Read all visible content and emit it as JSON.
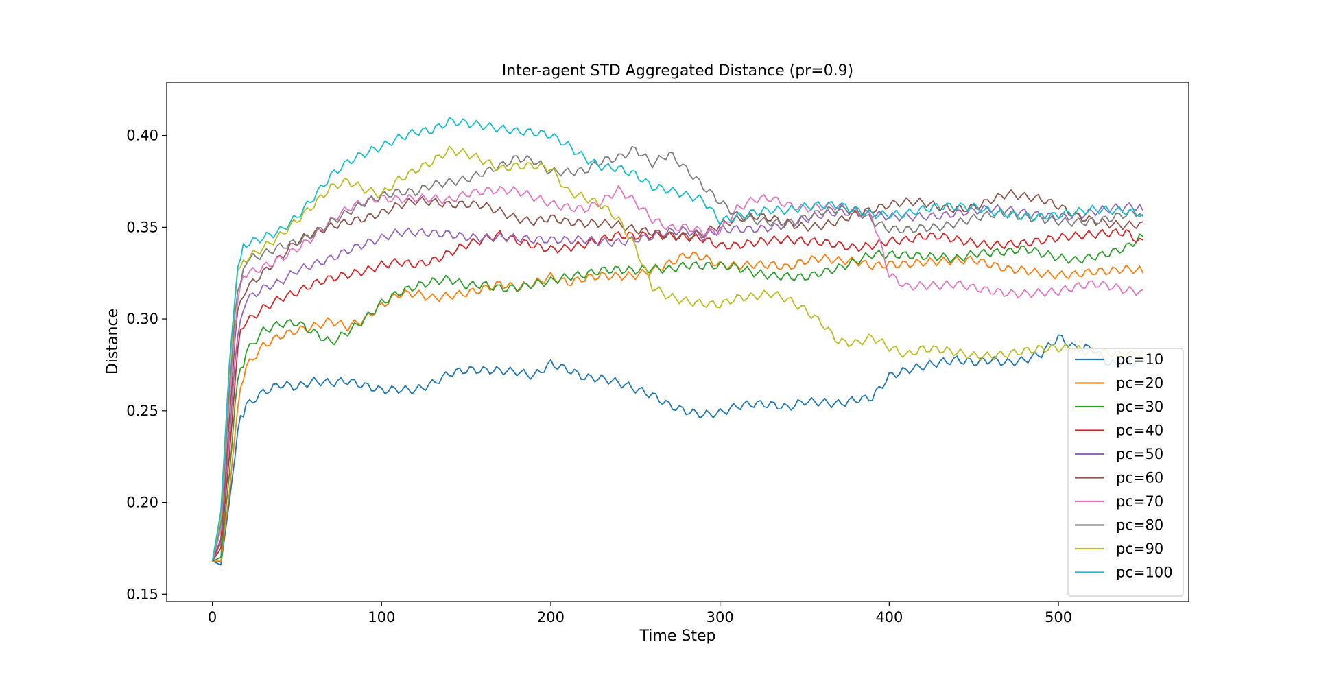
{
  "chart_data": {
    "type": "line",
    "title": "Inter-agent STD Aggregated Distance (pr=0.9)",
    "xlabel": "Time Step",
    "ylabel": "Distance",
    "xlim": [
      -27,
      577
    ],
    "ylim": [
      0.146,
      0.429
    ],
    "x_ticks": [
      0,
      100,
      200,
      300,
      400,
      500
    ],
    "x_tick_labels": [
      "0",
      "100",
      "200",
      "300",
      "400",
      "500"
    ],
    "y_ticks": [
      0.15,
      0.2,
      0.25,
      0.3,
      0.35,
      0.4
    ],
    "y_tick_labels": [
      "0.15",
      "0.20",
      "0.25",
      "0.30",
      "0.35",
      "0.40"
    ],
    "grid": false,
    "legend_position": "lower-right",
    "x": [
      0,
      5,
      10,
      15,
      20,
      30,
      40,
      50,
      60,
      70,
      80,
      90,
      100,
      110,
      120,
      130,
      140,
      150,
      160,
      170,
      180,
      190,
      200,
      210,
      220,
      230,
      240,
      250,
      260,
      270,
      280,
      290,
      300,
      310,
      320,
      330,
      340,
      350,
      360,
      370,
      380,
      390,
      400,
      410,
      420,
      430,
      440,
      450,
      460,
      470,
      480,
      490,
      500,
      510,
      520,
      530,
      540,
      550
    ],
    "series": [
      {
        "name": "pc=10",
        "color": "#1f77b4",
        "values": [
          0.168,
          0.166,
          0.2,
          0.238,
          0.255,
          0.262,
          0.265,
          0.262,
          0.264,
          0.263,
          0.265,
          0.264,
          0.263,
          0.264,
          0.263,
          0.265,
          0.269,
          0.27,
          0.27,
          0.271,
          0.272,
          0.271,
          0.278,
          0.274,
          0.268,
          0.266,
          0.263,
          0.26,
          0.258,
          0.254,
          0.252,
          0.25,
          0.25,
          0.252,
          0.252,
          0.251,
          0.25,
          0.255,
          0.256,
          0.256,
          0.258,
          0.258,
          0.268,
          0.27,
          0.272,
          0.275,
          0.278,
          0.278,
          0.28,
          0.278,
          0.278,
          0.28,
          0.288,
          0.282,
          0.283,
          0.276,
          0.278,
          0.279
        ]
      },
      {
        "name": "pc=20",
        "color": "#ff7f0e",
        "values": [
          0.168,
          0.168,
          0.205,
          0.255,
          0.272,
          0.285,
          0.292,
          0.296,
          0.298,
          0.3,
          0.295,
          0.298,
          0.305,
          0.312,
          0.314,
          0.313,
          0.315,
          0.316,
          0.317,
          0.318,
          0.315,
          0.317,
          0.322,
          0.32,
          0.324,
          0.326,
          0.325,
          0.324,
          0.325,
          0.328,
          0.333,
          0.333,
          0.33,
          0.331,
          0.332,
          0.331,
          0.328,
          0.33,
          0.331,
          0.33,
          0.331,
          0.33,
          0.332,
          0.332,
          0.332,
          0.331,
          0.33,
          0.33,
          0.328,
          0.327,
          0.328,
          0.327,
          0.326,
          0.325,
          0.325,
          0.324,
          0.325,
          0.325
        ]
      },
      {
        "name": "pc=30",
        "color": "#2ca02c",
        "values": [
          0.168,
          0.17,
          0.215,
          0.268,
          0.282,
          0.292,
          0.295,
          0.296,
          0.292,
          0.288,
          0.295,
          0.302,
          0.31,
          0.314,
          0.316,
          0.318,
          0.32,
          0.318,
          0.32,
          0.319,
          0.319,
          0.32,
          0.32,
          0.321,
          0.322,
          0.325,
          0.327,
          0.328,
          0.33,
          0.329,
          0.33,
          0.328,
          0.327,
          0.326,
          0.324,
          0.324,
          0.325,
          0.325,
          0.327,
          0.328,
          0.33,
          0.333,
          0.333,
          0.334,
          0.335,
          0.336,
          0.335,
          0.337,
          0.336,
          0.335,
          0.336,
          0.334,
          0.333,
          0.333,
          0.336,
          0.338,
          0.34,
          0.345
        ]
      },
      {
        "name": "pc=40",
        "color": "#d62728",
        "values": [
          0.168,
          0.175,
          0.225,
          0.285,
          0.3,
          0.308,
          0.313,
          0.315,
          0.318,
          0.32,
          0.322,
          0.325,
          0.33,
          0.333,
          0.332,
          0.333,
          0.336,
          0.339,
          0.341,
          0.344,
          0.342,
          0.341,
          0.34,
          0.341,
          0.342,
          0.343,
          0.344,
          0.343,
          0.344,
          0.345,
          0.346,
          0.346,
          0.342,
          0.341,
          0.341,
          0.341,
          0.341,
          0.341,
          0.342,
          0.342,
          0.341,
          0.342,
          0.343,
          0.342,
          0.343,
          0.343,
          0.342,
          0.342,
          0.342,
          0.343,
          0.343,
          0.343,
          0.343,
          0.343,
          0.344,
          0.346,
          0.348,
          0.343
        ]
      },
      {
        "name": "pc=50",
        "color": "#9467bd",
        "values": [
          0.168,
          0.178,
          0.235,
          0.295,
          0.308,
          0.315,
          0.32,
          0.328,
          0.332,
          0.335,
          0.338,
          0.34,
          0.342,
          0.345,
          0.346,
          0.347,
          0.348,
          0.347,
          0.346,
          0.345,
          0.343,
          0.341,
          0.341,
          0.342,
          0.344,
          0.344,
          0.344,
          0.345,
          0.345,
          0.346,
          0.346,
          0.343,
          0.348,
          0.35,
          0.351,
          0.352,
          0.353,
          0.354,
          0.355,
          0.356,
          0.356,
          0.357,
          0.357,
          0.358,
          0.358,
          0.357,
          0.357,
          0.357,
          0.358,
          0.358,
          0.358,
          0.358,
          0.358,
          0.358,
          0.359,
          0.359,
          0.359,
          0.359
        ]
      },
      {
        "name": "pc=60",
        "color": "#8c564b",
        "values": [
          0.168,
          0.18,
          0.245,
          0.305,
          0.318,
          0.325,
          0.332,
          0.34,
          0.345,
          0.35,
          0.354,
          0.357,
          0.36,
          0.363,
          0.364,
          0.362,
          0.36,
          0.361,
          0.362,
          0.36,
          0.357,
          0.355,
          0.356,
          0.352,
          0.35,
          0.35,
          0.35,
          0.349,
          0.349,
          0.348,
          0.347,
          0.347,
          0.35,
          0.352,
          0.354,
          0.354,
          0.353,
          0.352,
          0.353,
          0.355,
          0.357,
          0.358,
          0.36,
          0.362,
          0.363,
          0.362,
          0.362,
          0.363,
          0.366,
          0.368,
          0.365,
          0.363,
          0.36,
          0.356,
          0.355,
          0.354,
          0.353,
          0.353
        ]
      },
      {
        "name": "pc=70",
        "color": "#e377c2",
        "values": [
          0.168,
          0.185,
          0.255,
          0.312,
          0.325,
          0.33,
          0.335,
          0.34,
          0.345,
          0.352,
          0.358,
          0.362,
          0.365,
          0.366,
          0.368,
          0.368,
          0.366,
          0.368,
          0.368,
          0.368,
          0.368,
          0.366,
          0.364,
          0.363,
          0.362,
          0.365,
          0.37,
          0.362,
          0.352,
          0.348,
          0.35,
          0.349,
          0.35,
          0.362,
          0.366,
          0.365,
          0.36,
          0.358,
          0.36,
          0.362,
          0.36,
          0.358,
          0.326,
          0.318,
          0.317,
          0.316,
          0.317,
          0.316,
          0.316,
          0.316,
          0.316,
          0.316,
          0.315,
          0.316,
          0.317,
          0.316,
          0.315,
          0.316
        ]
      },
      {
        "name": "pc=80",
        "color": "#7f7f7f",
        "values": [
          0.168,
          0.188,
          0.262,
          0.318,
          0.33,
          0.333,
          0.338,
          0.342,
          0.348,
          0.355,
          0.36,
          0.364,
          0.366,
          0.367,
          0.367,
          0.372,
          0.375,
          0.378,
          0.382,
          0.385,
          0.388,
          0.385,
          0.378,
          0.378,
          0.38,
          0.387,
          0.39,
          0.395,
          0.386,
          0.39,
          0.38,
          0.37,
          0.362,
          0.356,
          0.355,
          0.355,
          0.354,
          0.356,
          0.358,
          0.358,
          0.357,
          0.352,
          0.349,
          0.35,
          0.352,
          0.352,
          0.353,
          0.354,
          0.355,
          0.355,
          0.354,
          0.355,
          0.355,
          0.355,
          0.355,
          0.355,
          0.356,
          0.356
        ]
      },
      {
        "name": "pc=90",
        "color": "#bcbd22",
        "values": [
          0.168,
          0.192,
          0.272,
          0.325,
          0.335,
          0.34,
          0.345,
          0.352,
          0.36,
          0.37,
          0.375,
          0.372,
          0.37,
          0.378,
          0.382,
          0.385,
          0.39,
          0.388,
          0.385,
          0.382,
          0.385,
          0.386,
          0.384,
          0.37,
          0.365,
          0.36,
          0.352,
          0.338,
          0.318,
          0.314,
          0.312,
          0.31,
          0.308,
          0.31,
          0.31,
          0.312,
          0.31,
          0.306,
          0.3,
          0.29,
          0.288,
          0.29,
          0.283,
          0.278,
          0.282,
          0.283,
          0.283,
          0.282,
          0.282,
          0.282,
          0.282,
          0.282,
          0.282,
          0.282,
          0.282,
          0.283,
          0.283,
          0.283
        ]
      },
      {
        "name": "pc=100",
        "color": "#17becf",
        "values": [
          0.168,
          0.195,
          0.275,
          0.33,
          0.34,
          0.345,
          0.35,
          0.358,
          0.368,
          0.378,
          0.384,
          0.388,
          0.392,
          0.398,
          0.403,
          0.405,
          0.41,
          0.408,
          0.405,
          0.402,
          0.4,
          0.4,
          0.4,
          0.396,
          0.39,
          0.385,
          0.383,
          0.378,
          0.37,
          0.368,
          0.366,
          0.365,
          0.355,
          0.358,
          0.36,
          0.36,
          0.358,
          0.359,
          0.36,
          0.361,
          0.36,
          0.359,
          0.359,
          0.359,
          0.36,
          0.36,
          0.359,
          0.359,
          0.358,
          0.358,
          0.358,
          0.358,
          0.358,
          0.358,
          0.358,
          0.357,
          0.357,
          0.357
        ]
      }
    ]
  }
}
